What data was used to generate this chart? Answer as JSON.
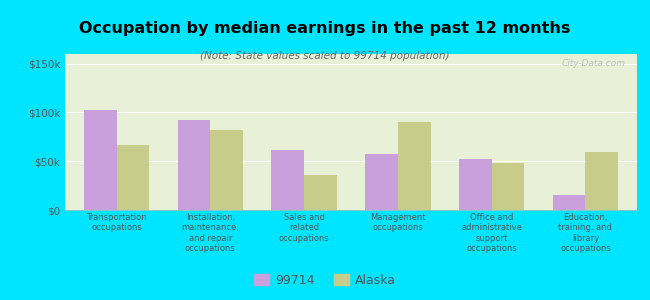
{
  "title": "Occupation by median earnings in the past 12 months",
  "subtitle": "(Note: State values scaled to 99714 population)",
  "categories": [
    "Transportation\noccupations",
    "Installation,\nmaintenance,\nand repair\noccupations",
    "Sales and\nrelated\noccupations",
    "Management\noccupations",
    "Office and\nadministrative\nsupport\noccupations",
    "Education,\ntraining, and\nlibrary\noccupations"
  ],
  "values_99714": [
    103000,
    92000,
    62000,
    57000,
    52000,
    15000
  ],
  "values_alaska": [
    67000,
    82000,
    36000,
    90000,
    48000,
    60000
  ],
  "color_99714": "#c9a0dc",
  "color_alaska": "#c8cc8a",
  "background_plot": "#e8f0d8",
  "background_fig": "#00e5ff",
  "ylim": [
    0,
    160000
  ],
  "yticks": [
    0,
    50000,
    100000,
    150000
  ],
  "ytick_labels": [
    "$0",
    "$50k",
    "$100k",
    "$150k"
  ],
  "legend_label_99714": "99714",
  "legend_label_alaska": "Alaska",
  "watermark": "City-Data.com",
  "bar_width": 0.35
}
